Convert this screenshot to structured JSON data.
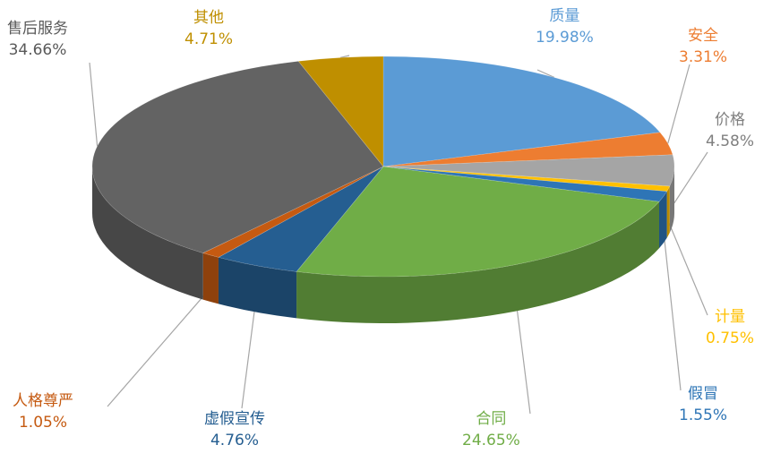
{
  "chart_data": {
    "type": "pie",
    "style": "3d",
    "title": "",
    "slices": [
      {
        "name": "质量",
        "value": 19.98,
        "label": "19.98%",
        "color": "#5b9bd5"
      },
      {
        "name": "安全",
        "value": 3.31,
        "label": "3.31%",
        "color": "#ed7d31"
      },
      {
        "name": "价格",
        "value": 4.58,
        "label": "4.58%",
        "color": "#a5a5a5"
      },
      {
        "name": "计量",
        "value": 0.75,
        "label": "0.75%",
        "color": "#ffc000"
      },
      {
        "name": "假冒",
        "value": 1.55,
        "label": "1.55%",
        "color": "#2e75b6"
      },
      {
        "name": "合同",
        "value": 24.65,
        "label": "24.65%",
        "color": "#70ad47"
      },
      {
        "name": "虚假宣传",
        "value": 4.76,
        "label": "4.76%",
        "color": "#255e91"
      },
      {
        "name": "人格尊严",
        "value": 1.05,
        "label": "1.05%",
        "color": "#c55a11"
      },
      {
        "name": "售后服务",
        "value": 34.66,
        "label": "34.66%",
        "color": "#636363"
      },
      {
        "name": "其他",
        "value": 4.71,
        "label": "4.71%",
        "color": "#bf8f00"
      }
    ],
    "label_colors": {
      "质量": "#5b9bd5",
      "安全": "#ed7d31",
      "价格": "#7f7f7f",
      "计量": "#ffc000",
      "假冒": "#2e75b6",
      "合同": "#70ad47",
      "虚假宣传": "#255e91",
      "人格尊严": "#c55a11",
      "售后服务": "#595959",
      "其他": "#bf8f00"
    }
  }
}
